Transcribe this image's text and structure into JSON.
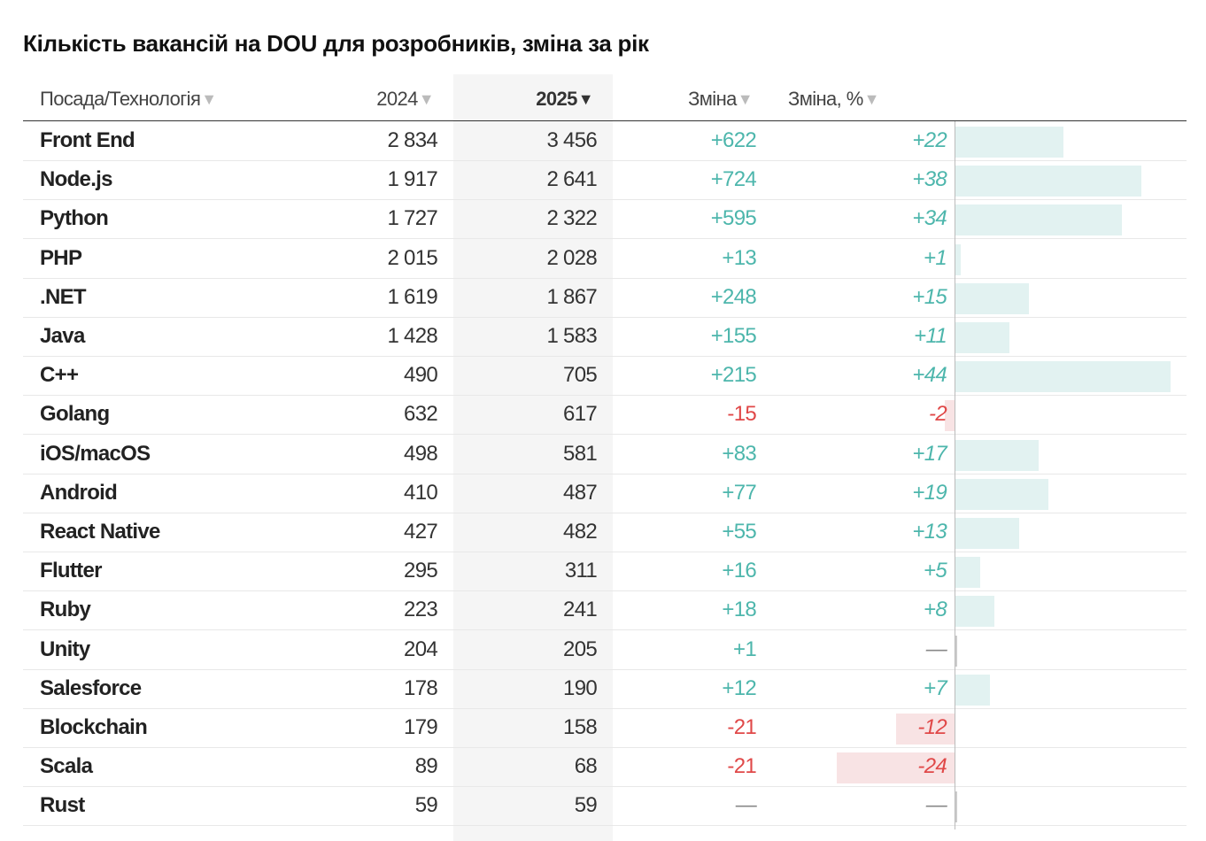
{
  "title": "Кількість вакансій на DOU для розробників, зміна за рік",
  "headers": {
    "position": "Посада/Технологія",
    "y2024": "2024",
    "y2025": "2025",
    "change": "Зміна",
    "change_pct": "Зміна, %",
    "sort_icon": "▼"
  },
  "colors": {
    "positive": "#4db6ac",
    "negative": "#e04848",
    "positive_bar": "#e2f2f1",
    "negative_bar": "#f8e3e4"
  },
  "rows": [
    {
      "name": "Front End",
      "y2024": "2 834",
      "y2025": "3 456",
      "change": "+622",
      "pct_label": "+22",
      "pct": 22
    },
    {
      "name": "Node.js",
      "y2024": "1 917",
      "y2025": "2 641",
      "change": "+724",
      "pct_label": "+38",
      "pct": 38
    },
    {
      "name": "Python",
      "y2024": "1 727",
      "y2025": "2 322",
      "change": "+595",
      "pct_label": "+34",
      "pct": 34
    },
    {
      "name": "PHP",
      "y2024": "2 015",
      "y2025": "2 028",
      "change": "+13",
      "pct_label": "+1",
      "pct": 1
    },
    {
      "name": ".NET",
      "y2024": "1 619",
      "y2025": "1 867",
      "change": "+248",
      "pct_label": "+15",
      "pct": 15
    },
    {
      "name": "Java",
      "y2024": "1 428",
      "y2025": "1 583",
      "change": "+155",
      "pct_label": "+11",
      "pct": 11
    },
    {
      "name": "C++",
      "y2024": "490",
      "y2025": "705",
      "change": "+215",
      "pct_label": "+44",
      "pct": 44
    },
    {
      "name": "Golang",
      "y2024": "632",
      "y2025": "617",
      "change": "-15",
      "pct_label": "-2",
      "pct": -2
    },
    {
      "name": "iOS/macOS",
      "y2024": "498",
      "y2025": "581",
      "change": "+83",
      "pct_label": "+17",
      "pct": 17
    },
    {
      "name": "Android",
      "y2024": "410",
      "y2025": "487",
      "change": "+77",
      "pct_label": "+19",
      "pct": 19
    },
    {
      "name": "React Native",
      "y2024": "427",
      "y2025": "482",
      "change": "+55",
      "pct_label": "+13",
      "pct": 13
    },
    {
      "name": "Flutter",
      "y2024": "295",
      "y2025": "311",
      "change": "+16",
      "pct_label": "+5",
      "pct": 5
    },
    {
      "name": "Ruby",
      "y2024": "223",
      "y2025": "241",
      "change": "+18",
      "pct_label": "+8",
      "pct": 8
    },
    {
      "name": "Unity",
      "y2024": "204",
      "y2025": "205",
      "change": "+1",
      "pct_label": "—",
      "pct": 0
    },
    {
      "name": "Salesforce",
      "y2024": "178",
      "y2025": "190",
      "change": "+12",
      "pct_label": "+7",
      "pct": 7
    },
    {
      "name": "Blockchain",
      "y2024": "179",
      "y2025": "158",
      "change": "-21",
      "pct_label": "-12",
      "pct": -12
    },
    {
      "name": "Scala",
      "y2024": "89",
      "y2025": "68",
      "change": "-21",
      "pct_label": "-24",
      "pct": -24
    },
    {
      "name": "Rust",
      "y2024": "59",
      "y2025": "59",
      "change": "—",
      "pct_label": "—",
      "pct": 0
    }
  ]
}
